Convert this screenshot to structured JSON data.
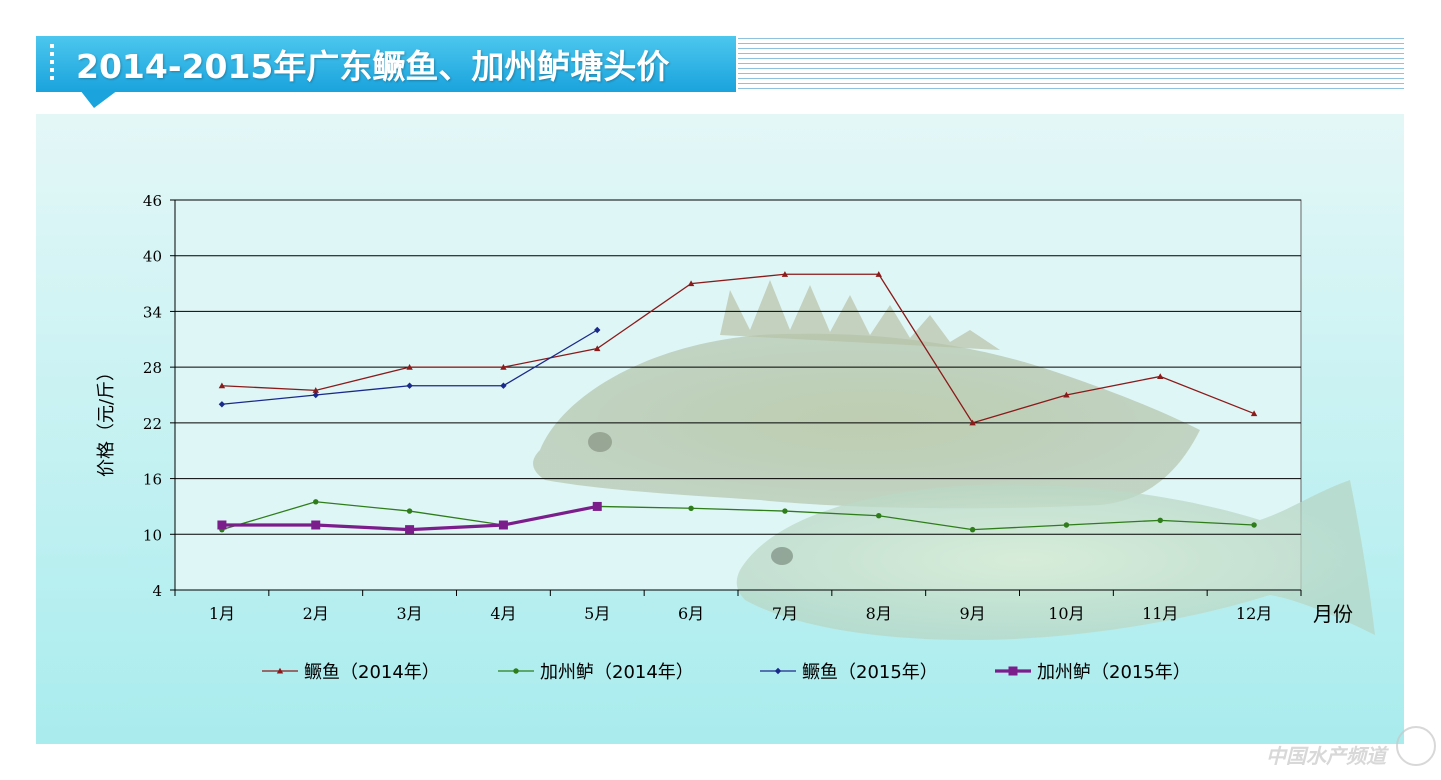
{
  "title": "2014-2015年广东鳜鱼、加州鲈塘头价",
  "watermark": "中国水产频道",
  "chart_data": {
    "type": "line",
    "ylabel": "价格（元/斤）",
    "xlabel": "月份",
    "ylim": [
      4,
      46
    ],
    "yticks": [
      4,
      10,
      16,
      22,
      28,
      34,
      40,
      46
    ],
    "categories": [
      "1月",
      "2月",
      "3月",
      "4月",
      "5月",
      "6月",
      "7月",
      "8月",
      "9月",
      "10月",
      "11月",
      "12月"
    ],
    "grid": true,
    "legend_position": "bottom",
    "series": [
      {
        "name": "鳜鱼（2014年）",
        "color": "#8b1a1a",
        "marker": "triangle",
        "values": [
          26,
          25.5,
          28,
          28,
          30,
          37,
          38,
          38,
          22,
          25,
          27,
          23
        ]
      },
      {
        "name": "加州鲈（2014年）",
        "color": "#2e7d1a",
        "marker": "circle",
        "values": [
          10.5,
          13.5,
          12.5,
          11,
          13,
          12.8,
          12.5,
          12,
          10.5,
          11,
          11.5,
          11
        ]
      },
      {
        "name": "鳜鱼（2015年）",
        "color": "#1a2a8b",
        "marker": "diamond",
        "values": [
          24,
          25,
          26,
          26,
          32,
          null,
          null,
          null,
          null,
          null,
          null,
          null
        ]
      },
      {
        "name": "加州鲈（2015年）",
        "color": "#7b1e8c",
        "marker": "square",
        "values": [
          11,
          11,
          10.5,
          11,
          13,
          null,
          null,
          null,
          null,
          null,
          null,
          null
        ]
      }
    ]
  }
}
